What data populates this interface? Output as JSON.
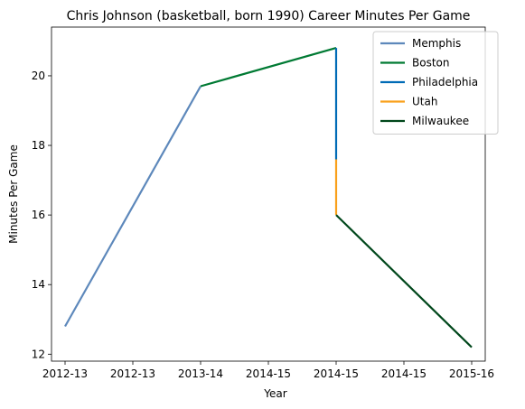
{
  "chart_data": {
    "type": "line",
    "title": "Chris Johnson (basketball, born 1990) Career Minutes Per Game",
    "xlabel": "Year",
    "ylabel": "Minutes Per Game",
    "x_tick_labels": [
      "2012-13",
      "2012-13",
      "2013-14",
      "2014-15",
      "2014-15",
      "2014-15",
      "2015-16"
    ],
    "x_tick_positions": [
      0,
      0.5,
      1,
      1.5,
      2,
      2.5,
      3
    ],
    "xlim": [
      -0.1,
      3.1
    ],
    "ylim": [
      11.8,
      21.4
    ],
    "y_ticks": [
      12,
      14,
      16,
      18,
      20
    ],
    "grid": false,
    "legend_position": "top-right",
    "series": [
      {
        "name": "Memphis",
        "color": "#5D88BB",
        "points": [
          [
            0,
            12.8
          ],
          [
            1,
            19.7
          ]
        ]
      },
      {
        "name": "Boston",
        "color": "#007A33",
        "points": [
          [
            1,
            19.7
          ],
          [
            2,
            20.8
          ]
        ]
      },
      {
        "name": "Philadelphia",
        "color": "#006BB6",
        "points": [
          [
            2,
            20.8
          ],
          [
            2,
            17.6
          ]
        ]
      },
      {
        "name": "Utah",
        "color": "#F9A01B",
        "points": [
          [
            2,
            17.6
          ],
          [
            2,
            16.0
          ]
        ]
      },
      {
        "name": "Milwaukee",
        "color": "#00471B",
        "points": [
          [
            2,
            16.0
          ],
          [
            3,
            12.2
          ]
        ]
      }
    ]
  }
}
